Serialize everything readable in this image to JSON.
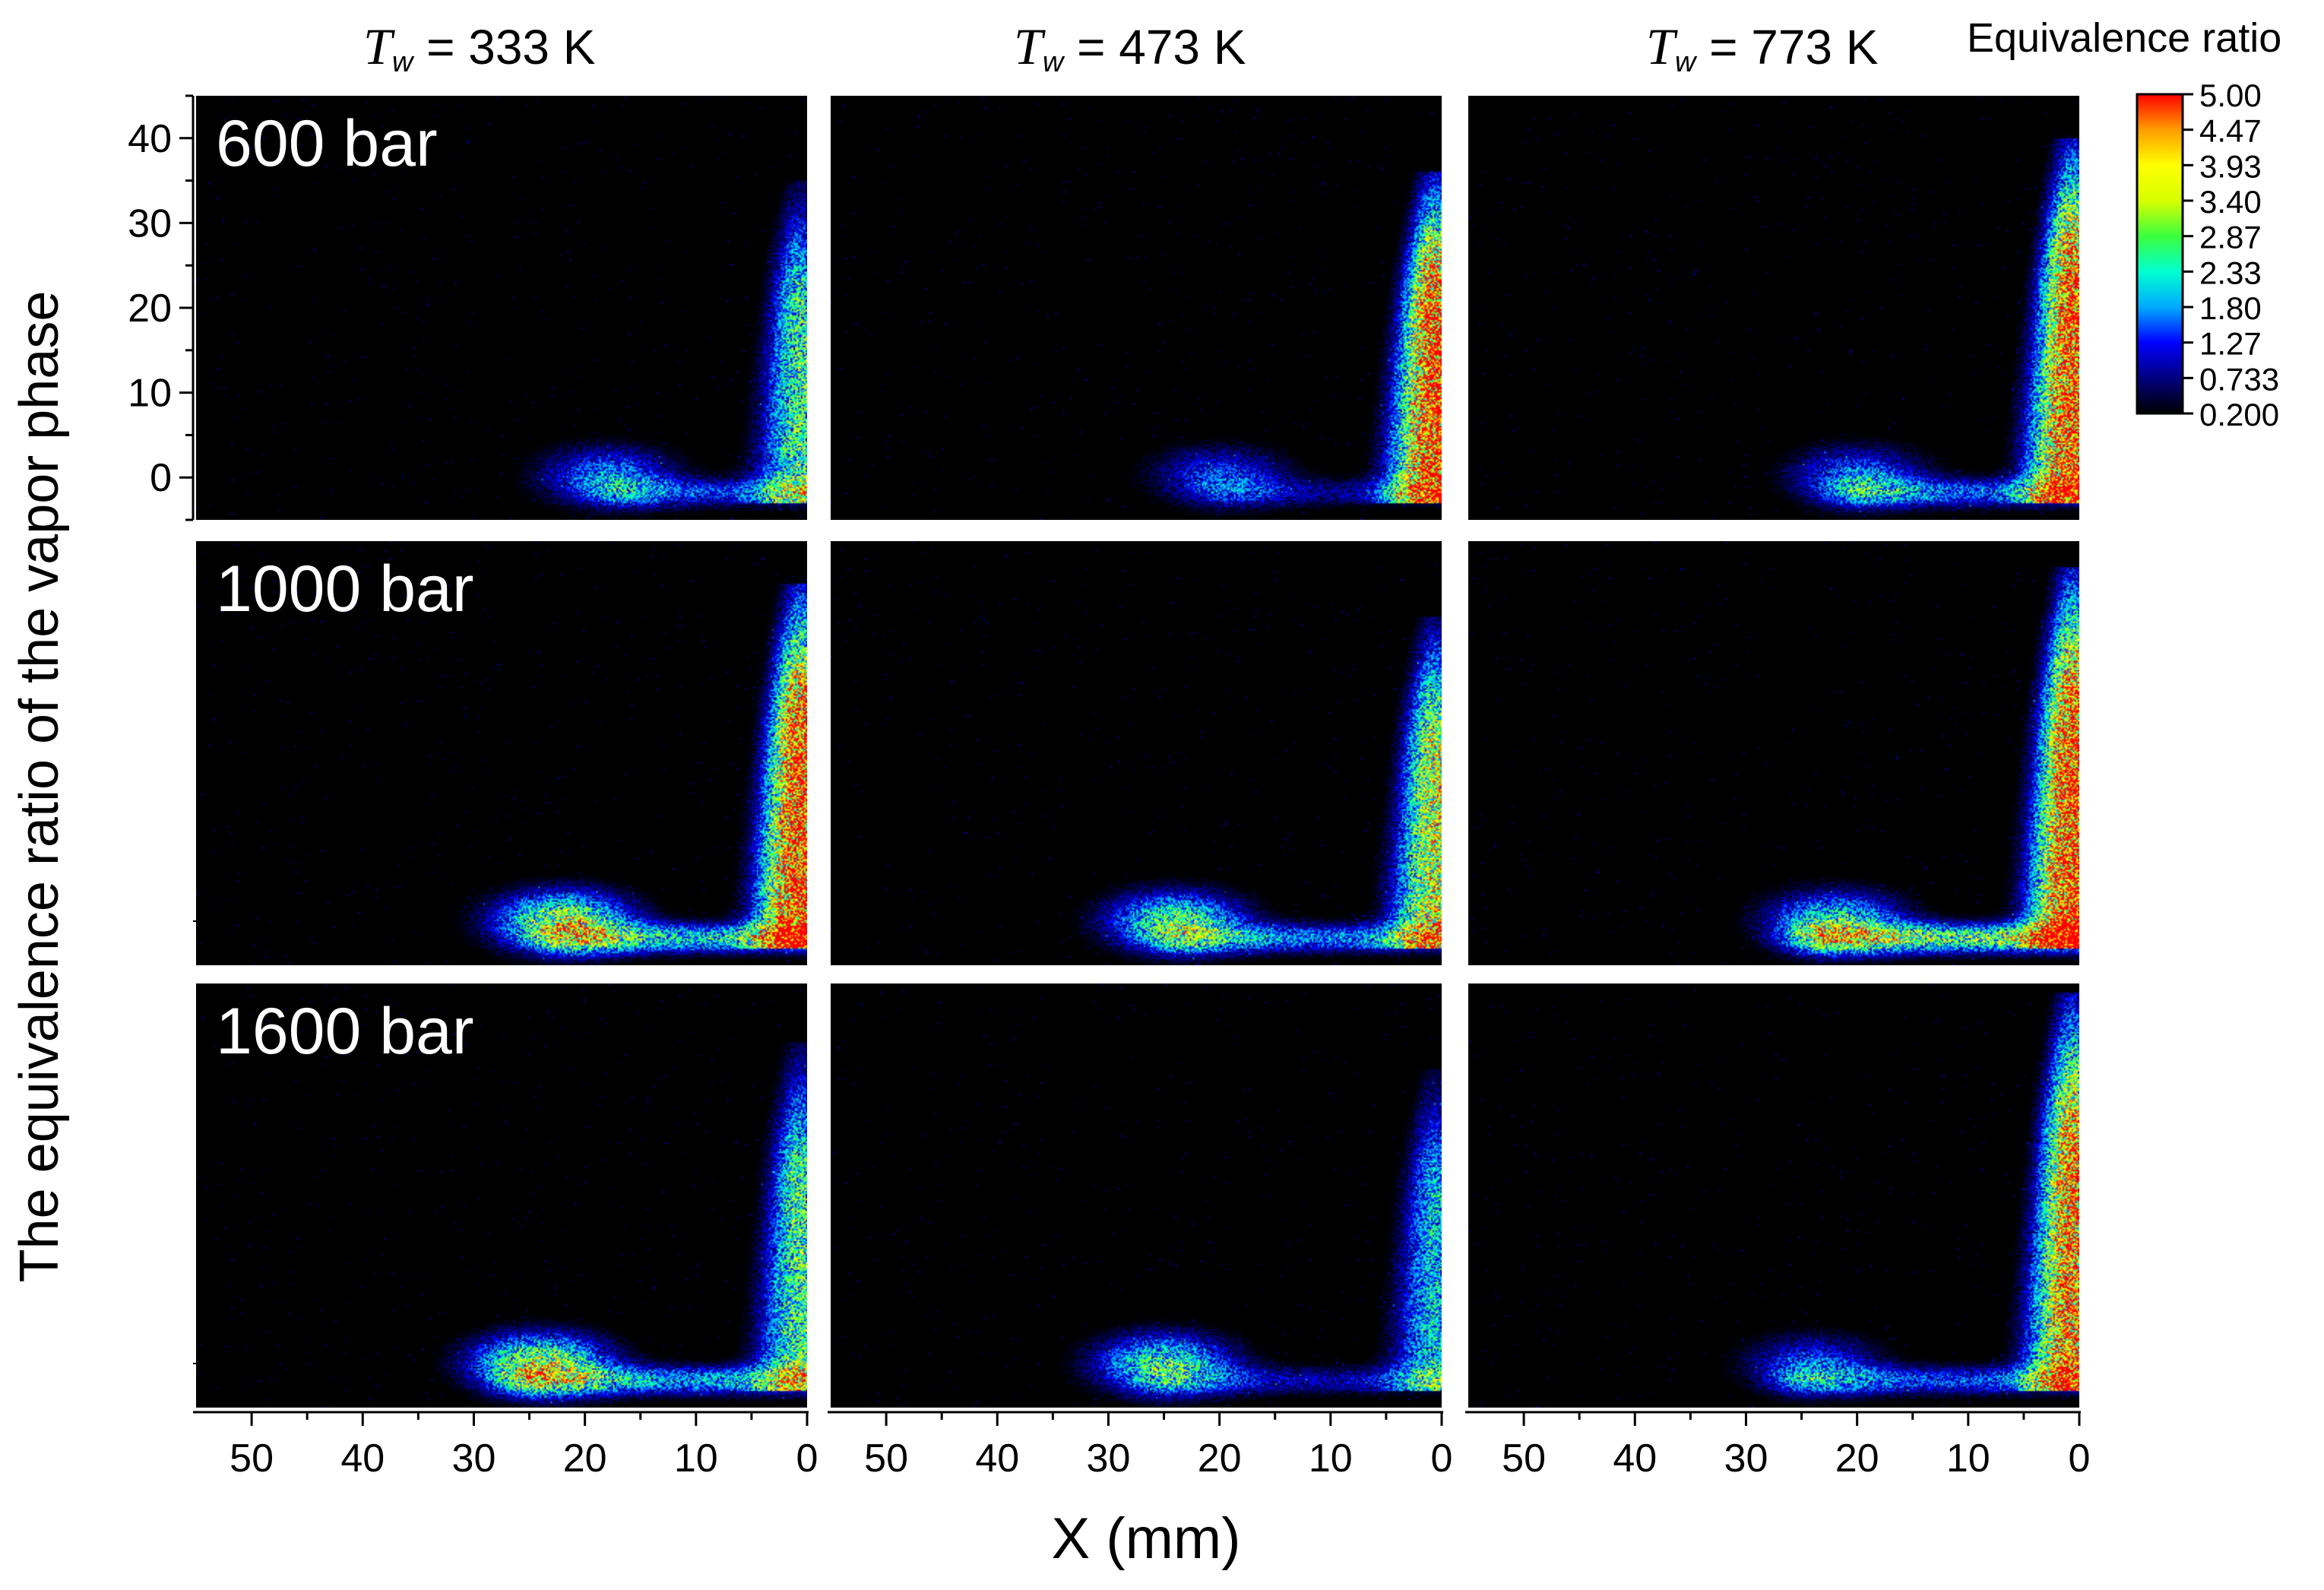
{
  "chart_data": {
    "type": "heatmap",
    "layout": "3 rows x 3 columns of false-color images",
    "column_headers": [
      {
        "symbol": "T",
        "subscript": "w",
        "text": "= 333 K"
      },
      {
        "symbol": "T",
        "subscript": "w",
        "text": "= 473 K"
      },
      {
        "symbol": "T",
        "subscript": "w",
        "text": "= 773 K"
      }
    ],
    "row_labels": [
      "600 bar",
      "1000 bar",
      "1600 bar"
    ],
    "xlabel": "X (mm)",
    "ylabel": "The equivalence ratio of the vapor phase",
    "x_range": [
      55,
      0
    ],
    "y_range": [
      -5,
      45
    ],
    "x_ticks": [
      "50",
      "40",
      "30",
      "20",
      "10",
      "0"
    ],
    "y_ticks": [
      "0",
      "10",
      "20",
      "30",
      "40"
    ],
    "colorbar": {
      "title": "Equivalence ratio",
      "levels": [
        "5.00",
        "4.47",
        "3.93",
        "3.40",
        "2.87",
        "2.33",
        "1.80",
        "1.27",
        "0.733",
        "0.200"
      ],
      "min": 0.2,
      "max": 5.0,
      "colors": [
        "#000000",
        "#00007f",
        "#0000ff",
        "#00aaff",
        "#00ffd0",
        "#3cff3c",
        "#d8ff00",
        "#ffff00",
        "#ff9c00",
        "#ff0000"
      ]
    },
    "panels": [
      {
        "row": 0,
        "col": 0,
        "wall_height_mm": 33,
        "wall_peak": 2.5,
        "blob_x_mm": 18,
        "blob_peak": 1.6,
        "floor_peak": 1.3,
        "spray_reach_mm": 20
      },
      {
        "row": 0,
        "col": 1,
        "wall_height_mm": 34,
        "wall_peak": 5.0,
        "blob_x_mm": 20,
        "blob_peak": 1.3,
        "floor_peak": 0.8,
        "spray_reach_mm": 23
      },
      {
        "row": 0,
        "col": 2,
        "wall_height_mm": 38,
        "wall_peak": 5.0,
        "blob_x_mm": 20,
        "blob_peak": 1.5,
        "floor_peak": 1.6,
        "spray_reach_mm": 24
      },
      {
        "row": 1,
        "col": 0,
        "wall_height_mm": 38,
        "wall_peak": 5.0,
        "blob_x_mm": 22,
        "blob_peak": 3.0,
        "floor_peak": 2.3,
        "spray_reach_mm": 26
      },
      {
        "row": 1,
        "col": 1,
        "wall_height_mm": 34,
        "wall_peak": 3.4,
        "blob_x_mm": 24,
        "blob_peak": 2.5,
        "floor_peak": 1.8,
        "spray_reach_mm": 28
      },
      {
        "row": 1,
        "col": 2,
        "wall_height_mm": 40,
        "wall_peak": 5.0,
        "blob_x_mm": 22,
        "blob_peak": 2.2,
        "floor_peak": 3.0,
        "spray_reach_mm": 28
      },
      {
        "row": 2,
        "col": 0,
        "wall_height_mm": 36,
        "wall_peak": 2.6,
        "blob_x_mm": 24,
        "blob_peak": 3.0,
        "floor_peak": 2.0,
        "spray_reach_mm": 30
      },
      {
        "row": 2,
        "col": 1,
        "wall_height_mm": 33,
        "wall_peak": 2.0,
        "blob_x_mm": 25,
        "blob_peak": 2.4,
        "floor_peak": 1.0,
        "spray_reach_mm": 30
      },
      {
        "row": 2,
        "col": 2,
        "wall_height_mm": 42,
        "wall_peak": 4.5,
        "blob_x_mm": 24,
        "blob_peak": 1.3,
        "floor_peak": 1.5,
        "spray_reach_mm": 30
      }
    ]
  }
}
